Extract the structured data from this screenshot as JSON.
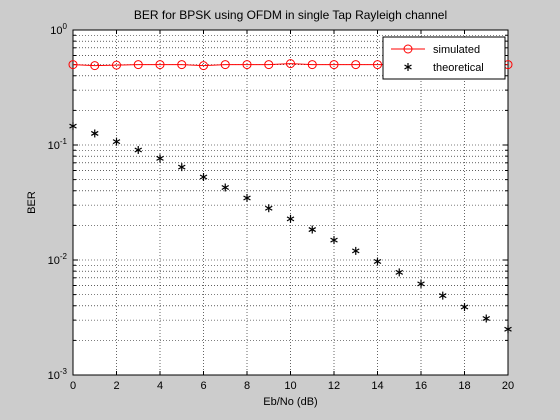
{
  "chart_data": {
    "type": "line",
    "title": "BER for BPSK using OFDM in single Tap Rayleigh channel",
    "xlabel": "Eb/No (dB)",
    "ylabel": "BER",
    "xlim": [
      0,
      20
    ],
    "ylim": [
      0.001,
      1
    ],
    "yscale": "log",
    "x_ticks": [
      "0",
      "2",
      "4",
      "6",
      "8",
      "10",
      "12",
      "14",
      "16",
      "18",
      "20"
    ],
    "grid": true,
    "legend_location": "top-right",
    "x": [
      0,
      1,
      2,
      3,
      4,
      5,
      6,
      7,
      8,
      9,
      10,
      11,
      12,
      13,
      14,
      15,
      16,
      17,
      18,
      19,
      20
    ],
    "series": [
      {
        "name": "simulated",
        "color": "#ff0000",
        "marker": "circle",
        "line": "solid",
        "values": [
          0.5,
          0.49,
          0.495,
          0.5,
          0.5,
          0.5,
          0.49,
          0.5,
          0.5,
          0.5,
          0.51,
          0.5,
          0.5,
          0.5,
          0.5,
          0.5,
          0.5,
          0.5,
          0.5,
          0.5,
          0.5
        ]
      },
      {
        "name": "theoretical",
        "color": "#000000",
        "marker": "asterisk",
        "line": "none",
        "values": [
          0.146,
          0.126,
          0.107,
          0.0905,
          0.0765,
          0.0642,
          0.0527,
          0.0427,
          0.0346,
          0.0282,
          0.0228,
          0.0184,
          0.0149,
          0.012,
          0.0097,
          0.0078,
          0.0062,
          0.0049,
          0.0039,
          0.0031,
          0.0025
        ]
      }
    ]
  }
}
